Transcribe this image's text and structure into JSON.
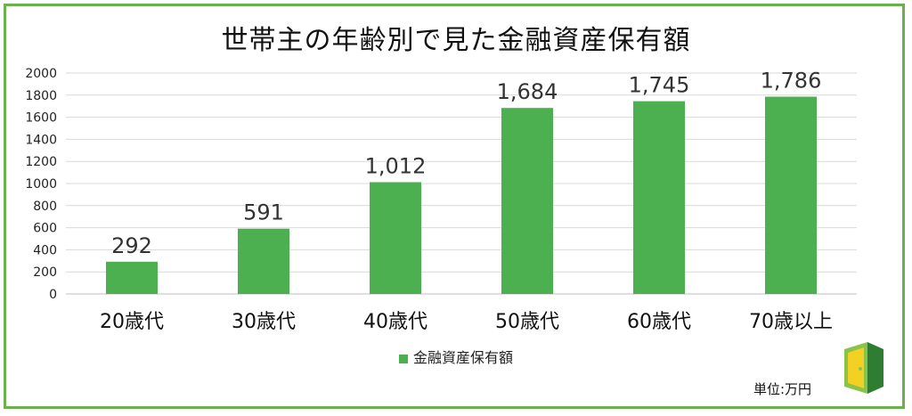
{
  "chart_data": {
    "type": "bar",
    "title": "世帯主の年齢別で見た金融資産保有額",
    "categories": [
      "20歳代",
      "30歳代",
      "40歳代",
      "50歳代",
      "60歳代",
      "70歳以上"
    ],
    "series": [
      {
        "name": "金融資産保有額",
        "values": [
          292,
          591,
          1012,
          1684,
          1745,
          1786
        ],
        "value_labels": [
          "292",
          "591",
          "1,012",
          "1,684",
          "1,745",
          "1,786"
        ],
        "color": "#4caf50"
      }
    ],
    "yticks": [
      "0",
      "200",
      "400",
      "600",
      "800",
      "1000",
      "1200",
      "1400",
      "1600",
      "1800",
      "2000"
    ],
    "ylim": [
      0,
      2000
    ],
    "grid": true,
    "legend": "bottom"
  },
  "unit_note": "単位:万円",
  "colors": {
    "border": "#6ab04c",
    "bar": "#4caf50",
    "grid": "#d9d9d9"
  },
  "logo_icon": "door-logo-icon"
}
